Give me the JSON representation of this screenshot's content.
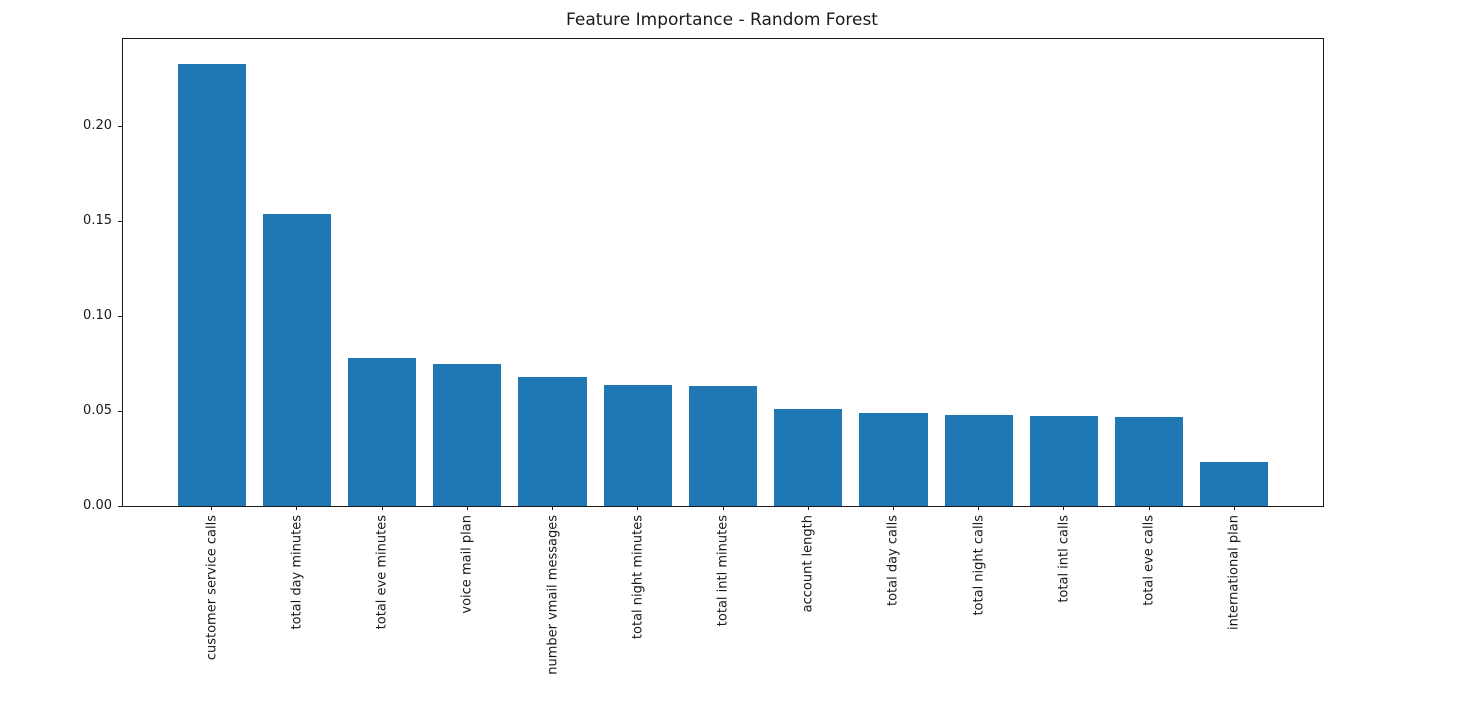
{
  "chart_data": {
    "type": "bar",
    "title": "Feature Importance - Random Forest",
    "xlabel": "",
    "ylabel": "",
    "categories": [
      "customer service calls",
      "total day minutes",
      "total eve minutes",
      "voice mail plan",
      "number vmail messages",
      "total night minutes",
      "total intl minutes",
      "account length",
      "total day calls",
      "total night calls",
      "total intl calls",
      "total eve calls",
      "international plan"
    ],
    "values": [
      0.233,
      0.154,
      0.078,
      0.075,
      0.068,
      0.064,
      0.063,
      0.051,
      0.049,
      0.048,
      0.0475,
      0.047,
      0.023
    ],
    "bar_color": "#1f77b4",
    "axis_color": "#1a1a1a",
    "text_color": "#1a1a1a",
    "background_color": "#ffffff",
    "ylim": [
      0,
      0.246
    ],
    "yticks": [
      0.0,
      0.05,
      0.1,
      0.15,
      0.2
    ],
    "ytick_labels": [
      "0.00",
      "0.05",
      "0.10",
      "0.15",
      "0.20"
    ],
    "xtick_rotation_degrees": 90,
    "grid": false,
    "legend_position": "none"
  }
}
